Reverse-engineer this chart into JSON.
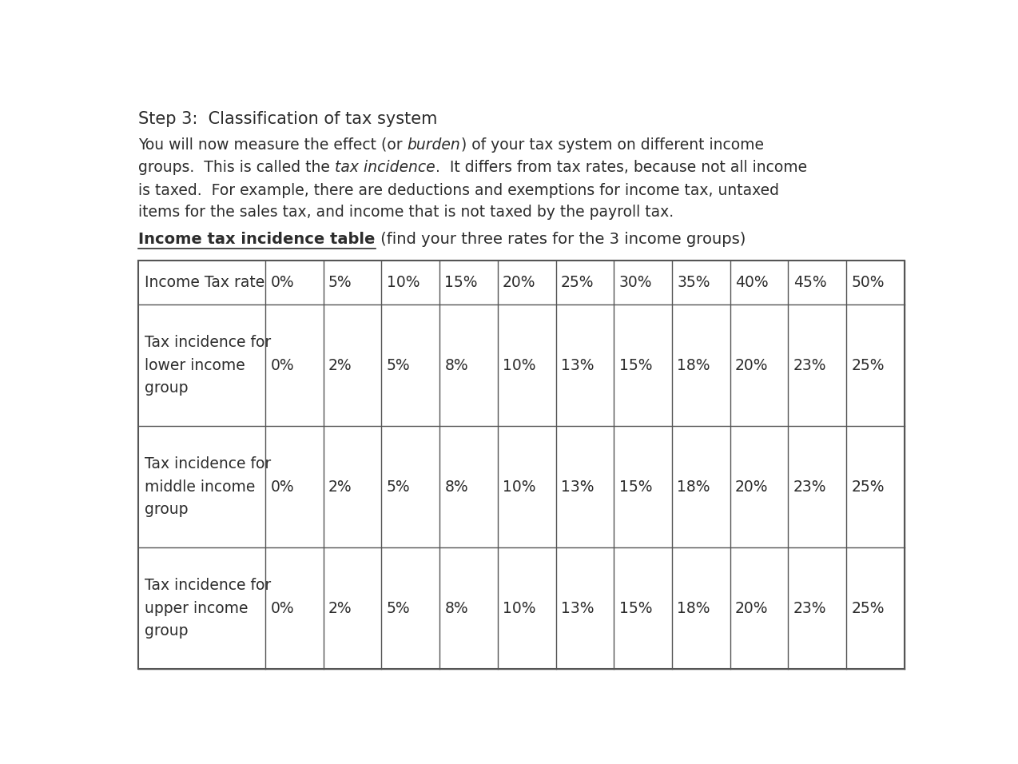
{
  "title": "Step 3:  Classification of tax system",
  "line1_parts": [
    {
      "text": "You will now measure the effect (or ",
      "italic": false
    },
    {
      "text": "burden",
      "italic": true
    },
    {
      "text": ") of your tax system on different income",
      "italic": false
    }
  ],
  "line2_parts": [
    {
      "text": "groups.  This is called the ",
      "italic": false
    },
    {
      "text": "tax incidence",
      "italic": true
    },
    {
      "text": ".  It differs from tax rates, because not all income",
      "italic": false
    }
  ],
  "line3_parts": [
    {
      "text": "is taxed.  For example, there are deductions and exemptions for income tax, untaxed",
      "italic": false
    }
  ],
  "line4_parts": [
    {
      "text": "items for the sales tax, and income that is not taxed by the payroll tax.",
      "italic": false
    }
  ],
  "table_label": "Income tax incidence table",
  "table_label_suffix": " (find your three rates for the 3 income groups)",
  "col_header": [
    "Income Tax rate",
    "0%",
    "5%",
    "10%",
    "15%",
    "20%",
    "25%",
    "30%",
    "35%",
    "40%",
    "45%",
    "50%"
  ],
  "rows": [
    {
      "label_lines": [
        "Tax incidence for",
        "lower income",
        "group"
      ],
      "values": [
        "0%",
        "2%",
        "5%",
        "8%",
        "10%",
        "13%",
        "15%",
        "18%",
        "20%",
        "23%",
        "25%"
      ]
    },
    {
      "label_lines": [
        "Tax incidence for",
        "middle income",
        "group"
      ],
      "values": [
        "0%",
        "2%",
        "5%",
        "8%",
        "10%",
        "13%",
        "15%",
        "18%",
        "20%",
        "23%",
        "25%"
      ]
    },
    {
      "label_lines": [
        "Tax incidence for",
        "upper income",
        "group"
      ],
      "values": [
        "0%",
        "2%",
        "5%",
        "8%",
        "10%",
        "13%",
        "15%",
        "18%",
        "20%",
        "23%",
        "25%"
      ]
    }
  ],
  "bg_color": "#ffffff",
  "text_color": "#2c2c2c",
  "font_size": 13.5,
  "title_font_size": 15,
  "table_label_font_size": 14
}
